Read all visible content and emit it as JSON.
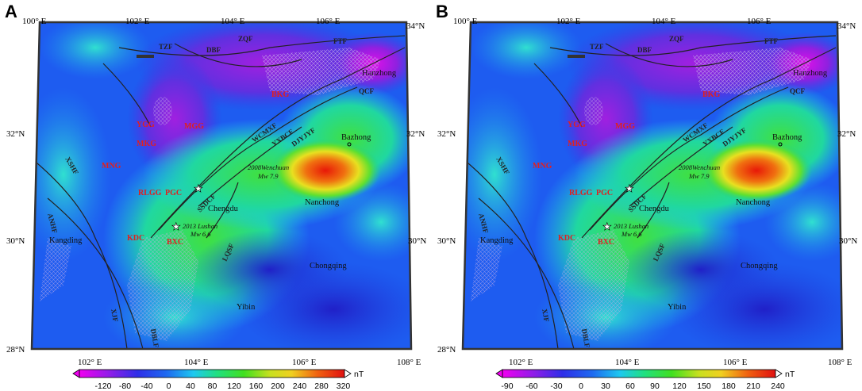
{
  "panels": [
    {
      "label": "A",
      "colorbar": {
        "ticks": [
          "-120",
          "-80",
          "-40",
          "0",
          "40",
          "80",
          "120",
          "160",
          "200",
          "240",
          "280",
          "320"
        ],
        "unit": "nT"
      }
    },
    {
      "label": "B",
      "colorbar": {
        "ticks": [
          "-90",
          "-60",
          "-30",
          "0",
          "30",
          "60",
          "90",
          "120",
          "150",
          "180",
          "210",
          "240"
        ],
        "unit": "nT"
      }
    }
  ],
  "lon_labels": {
    "top": [
      "100° E",
      "102° E",
      "104° E",
      "106° E"
    ],
    "bottom": [
      "102° E",
      "104° E",
      "106° E",
      "108° E"
    ]
  },
  "lat_labels": {
    "left": [
      "32°N",
      "30°N",
      "28°N"
    ],
    "right": [
      "34°N",
      "32°N",
      "30°N"
    ]
  },
  "faults": [
    "FTF",
    "ZQF",
    "DBF",
    "TZF",
    "QCF",
    "WCMXF",
    "YXBCF",
    "DJYJYF",
    "SSDCF",
    "LQSF",
    "XSHF",
    "XJF",
    "ANHF",
    "DBLF"
  ],
  "blocks": [
    "YGG",
    "MGG",
    "MKG",
    "MNG",
    "RLGG",
    "PGC",
    "KDC",
    "BXC",
    "BKG"
  ],
  "cities": [
    "Hanzhong",
    "Bazhong",
    "Nanchong",
    "Chengdu",
    "Chongqing",
    "Yibin",
    "Kangding"
  ],
  "earthquakes": [
    {
      "name": "2008Wenchuan",
      "mag": "Mw 7.9"
    },
    {
      "name": "2013 Lushan",
      "mag": "Mw 6.6"
    }
  ],
  "colors": {
    "frame": "#333333",
    "anomaly_high": "#e83010",
    "anomaly_low": "#a020e0",
    "background": "#1e5cf0"
  }
}
